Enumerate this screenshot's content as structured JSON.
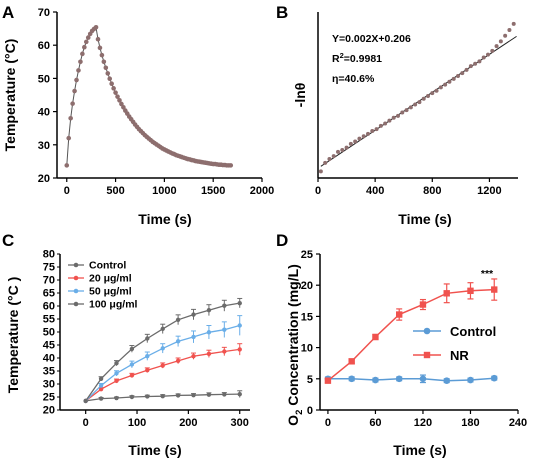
{
  "colors": {
    "brown": "#8d6e6e",
    "dark_gray": "#6b6b6b",
    "gray_line": "#555555",
    "red": "#f0524e",
    "blue": "#5b9bd5",
    "light_blue": "#6aaee8"
  },
  "panels": {
    "A": {
      "label": "A"
    },
    "B": {
      "label": "B"
    },
    "C": {
      "label": "C"
    },
    "D": {
      "label": "D"
    }
  },
  "chart_data": [
    {
      "panel": "A",
      "type": "line",
      "xlabel": "Time (s)",
      "ylabel": "Temperature (°C)",
      "xlim": [
        0,
        2000
      ],
      "ylim": [
        20,
        70
      ],
      "xticks": [
        0,
        500,
        1000,
        1500,
        2000
      ],
      "yticks": [
        20,
        30,
        40,
        50,
        60,
        70
      ],
      "series": [
        {
          "color": "#8d6e6e",
          "x": [
            0,
            20,
            40,
            60,
            80,
            100,
            120,
            140,
            160,
            180,
            200,
            220,
            240,
            260,
            280,
            300,
            320,
            340,
            360,
            380,
            400,
            420,
            440,
            460,
            480,
            500,
            520,
            540,
            560,
            580,
            600,
            620,
            640,
            660,
            680,
            700,
            720,
            740,
            760,
            780,
            800,
            820,
            840,
            860,
            880,
            900,
            920,
            940,
            960,
            980,
            1000,
            1020,
            1040,
            1060,
            1080,
            1100,
            1120,
            1140,
            1160,
            1180,
            1200,
            1220,
            1240,
            1260,
            1280,
            1300,
            1320,
            1340,
            1360,
            1380,
            1400,
            1420,
            1440,
            1460,
            1480,
            1500,
            1520,
            1540,
            1560,
            1580,
            1600,
            1620,
            1640,
            1660,
            1680
          ],
          "y": [
            23.8,
            32.0,
            38.0,
            42.4,
            46.2,
            49.5,
            52.4,
            55.0,
            57.4,
            59.4,
            61.0,
            62.3,
            63.4,
            64.3,
            64.9,
            65.4,
            61.8,
            59.2,
            57.0,
            55.0,
            53.2,
            51.5,
            49.9,
            48.4,
            47.0,
            45.7,
            44.5,
            43.4,
            42.3,
            41.3,
            40.3,
            39.4,
            38.5,
            37.7,
            36.9,
            36.1,
            35.4,
            34.7,
            34.1,
            33.5,
            32.9,
            32.4,
            31.9,
            31.4,
            30.9,
            30.5,
            30.1,
            29.7,
            29.3,
            28.9,
            28.6,
            28.3,
            28.0,
            27.7,
            27.4,
            27.2,
            26.9,
            26.7,
            26.5,
            26.3,
            26.1,
            25.9,
            25.7,
            25.6,
            25.4,
            25.3,
            25.1,
            25.0,
            24.9,
            24.8,
            24.7,
            24.6,
            24.5,
            24.4,
            24.3,
            24.2,
            24.2,
            24.1,
            24.0,
            24.0,
            23.9,
            23.9,
            23.8,
            23.8,
            23.8
          ]
        }
      ]
    },
    {
      "panel": "B",
      "type": "scatter",
      "xlabel": "Time (s)",
      "ylabel": "-lnθ",
      "xlim": [
        0,
        1400
      ],
      "ylim": [
        0,
        3.5
      ],
      "xticks": [
        0,
        400,
        800,
        1200
      ],
      "annotations": [
        "Y=0.002X+0.206",
        "R2=0.9981",
        "η=40.6%"
      ],
      "fit": {
        "slope": 0.002,
        "intercept": 0.206
      },
      "series": [
        {
          "color": "#8d6e6e",
          "x": [
            20,
            50,
            80,
            110,
            140,
            170,
            200,
            230,
            260,
            290,
            320,
            350,
            380,
            410,
            440,
            470,
            500,
            530,
            560,
            590,
            620,
            650,
            680,
            710,
            740,
            770,
            800,
            830,
            860,
            890,
            920,
            950,
            980,
            1010,
            1040,
            1070,
            1100,
            1130,
            1160,
            1190,
            1220,
            1250,
            1280,
            1310,
            1340,
            1370
          ],
          "y": [
            0.14,
            0.32,
            0.4,
            0.46,
            0.55,
            0.59,
            0.64,
            0.72,
            0.77,
            0.83,
            0.88,
            0.93,
            0.99,
            1.03,
            1.1,
            1.15,
            1.21,
            1.27,
            1.31,
            1.38,
            1.43,
            1.49,
            1.55,
            1.6,
            1.67,
            1.73,
            1.79,
            1.84,
            1.91,
            1.97,
            2.03,
            2.09,
            2.15,
            2.21,
            2.28,
            2.36,
            2.41,
            2.46,
            2.54,
            2.6,
            2.68,
            2.78,
            2.88,
            3.0,
            3.12,
            3.25
          ]
        }
      ]
    },
    {
      "panel": "C",
      "type": "line",
      "xlabel": "Time (s)",
      "ylabel": "Temperature (°C )",
      "xlim": [
        -50,
        320
      ],
      "ylim": [
        20,
        80
      ],
      "xticks": [
        0,
        100,
        200,
        300
      ],
      "yticks": [
        20,
        25,
        30,
        35,
        40,
        45,
        50,
        55,
        60,
        65,
        70,
        75,
        80
      ],
      "x": [
        0,
        30,
        60,
        90,
        120,
        150,
        180,
        210,
        240,
        270,
        300
      ],
      "series": [
        {
          "name": "Control",
          "color": "#6b6b6b",
          "y": [
            23.5,
            24.4,
            24.6,
            25.0,
            25.2,
            25.3,
            25.6,
            25.7,
            25.9,
            26.0,
            26.1
          ],
          "err": [
            0.4,
            0.4,
            0.4,
            0.5,
            0.5,
            0.6,
            0.6,
            0.6,
            0.7,
            0.7,
            1.3
          ]
        },
        {
          "name": "20 μg/ml",
          "color": "#f0524e",
          "y": [
            23.5,
            28.0,
            31.2,
            33.3,
            35.3,
            37.1,
            38.9,
            40.7,
            41.6,
            42.5,
            43.3
          ],
          "err": [
            0.5,
            0.6,
            0.7,
            0.8,
            0.9,
            1.0,
            1.1,
            1.2,
            1.4,
            1.6,
            2.2
          ]
        },
        {
          "name": "50 μg/ml",
          "color": "#6aaee8",
          "y": [
            23.5,
            29.4,
            34.1,
            37.5,
            40.7,
            43.7,
            46.4,
            48.1,
            49.9,
            50.9,
            52.5
          ],
          "err": [
            0.6,
            0.8,
            1.0,
            1.3,
            1.6,
            1.8,
            2.0,
            2.3,
            2.6,
            3.0,
            3.8
          ]
        },
        {
          "name": "100 μg/ml",
          "color": "#6b6b6b",
          "y": [
            23.5,
            32.0,
            38.0,
            43.5,
            47.5,
            51.2,
            54.7,
            56.7,
            58.4,
            60.1,
            61.1
          ],
          "err": [
            0.5,
            0.8,
            1.0,
            1.3,
            1.6,
            1.8,
            1.9,
            2.0,
            2.1,
            2.1,
            1.8
          ]
        }
      ]
    },
    {
      "panel": "D",
      "type": "line",
      "xlabel": "Time (s)",
      "ylabel_parts": [
        "O",
        "2",
        " Concentration (mg/L)"
      ],
      "xlim": [
        -10,
        240
      ],
      "ylim": [
        0,
        25
      ],
      "xticks": [
        0,
        60,
        120,
        180,
        240
      ],
      "yticks": [
        0,
        5,
        10,
        15,
        20,
        25
      ],
      "annotations": [
        "***"
      ],
      "x": [
        0,
        30,
        60,
        90,
        120,
        150,
        180,
        210
      ],
      "series": [
        {
          "name": "Control",
          "color": "#5b9bd5",
          "marker": "circle",
          "y": [
            5.0,
            5.0,
            4.8,
            5.0,
            5.0,
            4.7,
            4.8,
            5.1
          ],
          "err": [
            0.3,
            0.3,
            0.3,
            0.3,
            0.6,
            0.3,
            0.3,
            0.3
          ]
        },
        {
          "name": "NR",
          "color": "#f0524e",
          "marker": "square",
          "y": [
            4.7,
            7.8,
            11.7,
            15.3,
            16.9,
            18.7,
            19.1,
            19.3
          ],
          "err": [
            0.3,
            0.3,
            0.4,
            0.9,
            0.8,
            1.5,
            1.3,
            1.7
          ]
        }
      ]
    }
  ]
}
